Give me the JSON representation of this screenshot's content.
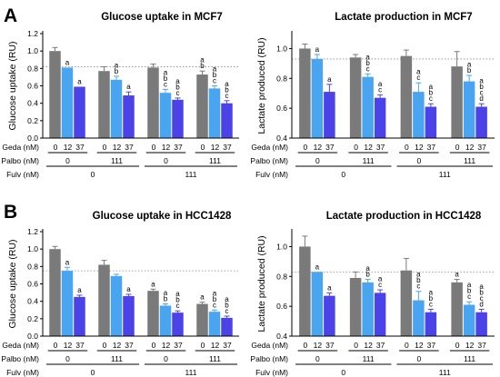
{
  "figure": {
    "panel_labels": [
      "A",
      "B"
    ],
    "colors": {
      "geda_0": "#7a7a7a",
      "geda_12": "#4aa5f0",
      "geda_37": "#4b43e8",
      "reference_line": "#8a8a8a",
      "axis": "#000000"
    },
    "row_labels": {
      "geda": "Geda (nM)",
      "palbo": "Palbo (nM)",
      "fulv": "Fulv (nM)"
    },
    "geda_values": [
      "0",
      "12",
      "37"
    ],
    "palbo_values": [
      "0",
      "111",
      "0",
      "111"
    ],
    "fulv_values": [
      "0",
      "111"
    ]
  },
  "chart_data": [
    {
      "type": "bar",
      "panel": "A",
      "title": "Glucose uptake in MCF7",
      "ylabel": "Glucose uptake (RU)",
      "ylim": [
        0,
        1.2
      ],
      "yticks": [
        "0.0",
        "0.2",
        "0.4",
        "0.6",
        "0.8",
        "1.0",
        "1.2"
      ],
      "reference_line": 0.82,
      "categories": [
        "0|0",
        "0|111",
        "111|0",
        "111|111"
      ],
      "series": [
        {
          "values": [
            1.0,
            0.77,
            0.81,
            0.73
          ],
          "errors": [
            0.04,
            0.05,
            0.04,
            0.04
          ],
          "letters": [
            "",
            "",
            "",
            "a\nb"
          ]
        },
        {
          "values": [
            0.81,
            0.67,
            0.52,
            0.57
          ],
          "errors": [
            0.0,
            0.04,
            0.04,
            0.03
          ],
          "letters": [
            "a",
            "a\nb",
            "a\nb\nc",
            "a\nb\nc"
          ]
        },
        {
          "values": [
            0.59,
            0.49,
            0.44,
            0.4
          ],
          "errors": [
            0.0,
            0.04,
            0.02,
            0.03
          ],
          "letters": [
            "a",
            "a",
            "a\nb\nc",
            "a\nb\nc"
          ]
        }
      ]
    },
    {
      "type": "bar",
      "panel": "A",
      "title": "Lactate production in MCF7",
      "ylabel": "Lactate produced (RU)",
      "ylim": [
        0.4,
        1.1
      ],
      "yticks": [
        "0.4",
        "0.6",
        "0.8",
        "1.0"
      ],
      "reference_line": 0.93,
      "categories": [
        "0|0",
        "0|111",
        "111|0",
        "111|111"
      ],
      "series": [
        {
          "values": [
            1.0,
            0.94,
            0.95,
            0.88
          ],
          "errors": [
            0.03,
            0.02,
            0.04,
            0.1
          ],
          "letters": [
            "",
            "",
            "",
            ""
          ]
        },
        {
          "values": [
            0.93,
            0.81,
            0.71,
            0.78
          ],
          "errors": [
            0.03,
            0.02,
            0.06,
            0.04
          ],
          "letters": [
            "a",
            "a\nb\nc",
            "a\nc",
            "a\nb"
          ]
        },
        {
          "values": [
            0.71,
            0.67,
            0.61,
            0.61
          ],
          "errors": [
            0.05,
            0.02,
            0.02,
            0.02
          ],
          "letters": [
            "a",
            "a\nc",
            "a\nb\nc",
            "a\nb\nc\nd"
          ]
        }
      ]
    },
    {
      "type": "bar",
      "panel": "B",
      "title": "Glucose uptake in HCC1428",
      "ylabel": "Glucose uptake (RU)",
      "ylim": [
        0,
        1.2
      ],
      "yticks": [
        "0.0",
        "0.2",
        "0.4",
        "0.6",
        "0.8",
        "1.0",
        "1.2"
      ],
      "reference_line": 0.75,
      "categories": [
        "0|0",
        "0|111",
        "111|0",
        "111|111"
      ],
      "series": [
        {
          "values": [
            1.0,
            0.82,
            0.52,
            0.37
          ],
          "errors": [
            0.03,
            0.05,
            0.02,
            0.02
          ],
          "letters": [
            "",
            "",
            "a",
            "a"
          ]
        },
        {
          "values": [
            0.75,
            0.69,
            0.35,
            0.28
          ],
          "errors": [
            0.04,
            0.02,
            0.02,
            0.02
          ],
          "letters": [
            "a",
            "",
            "a\nb",
            "a\nb\nc"
          ]
        },
        {
          "values": [
            0.45,
            0.46,
            0.27,
            0.21
          ],
          "errors": [
            0.02,
            0.02,
            0.02,
            0.02
          ],
          "letters": [
            "a",
            "a",
            "a\nb\nc",
            "a\nb\nc"
          ]
        }
      ]
    },
    {
      "type": "bar",
      "panel": "B",
      "title": "Lactate production in HCC1428",
      "ylabel": "Lactate produced (RU)",
      "ylim": [
        0.4,
        1.1
      ],
      "yticks": [
        "0.4",
        "0.6",
        "0.8",
        "1.0"
      ],
      "reference_line": 0.83,
      "categories": [
        "0|0",
        "0|111",
        "111|0",
        "111|111"
      ],
      "series": [
        {
          "values": [
            1.0,
            0.79,
            0.84,
            0.76
          ],
          "errors": [
            0.07,
            0.04,
            0.08,
            0.02
          ],
          "letters": [
            "",
            "",
            "",
            "a"
          ]
        },
        {
          "values": [
            0.83,
            0.76,
            0.64,
            0.61
          ],
          "errors": [
            0.0,
            0.02,
            0.06,
            0.02
          ],
          "letters": [
            "a",
            "a\nb",
            "a\nb\nc",
            "a\nb\nc"
          ]
        },
        {
          "values": [
            0.67,
            0.69,
            0.56,
            0.56
          ],
          "errors": [
            0.02,
            0.02,
            0.02,
            0.02
          ],
          "letters": [
            "a",
            "a\nc",
            "a\nb\nc",
            "a\nb\nc\nd"
          ]
        }
      ]
    }
  ]
}
